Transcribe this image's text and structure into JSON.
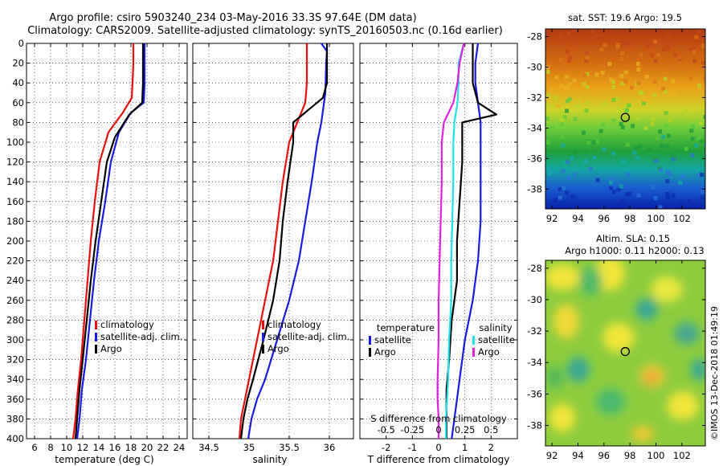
{
  "title_lines": [
    "Argo profile: csiro 5903240_234 03-May-2016 33.3S 97.64E (DM data)",
    "Climatology: CARS2009. Satellite-adjusted climatology: synTS_20160503.nc (0.16d earlier)"
  ],
  "credit": "©IMOS 13-Dec-2018 01:49:19",
  "colors": {
    "climatology": "#e8100c",
    "satellite": "#1a1ae0",
    "argo": "#000000",
    "sat_salinity": "#20e0e8",
    "argo_salinity": "#e020e0"
  },
  "chart_data": [
    {
      "type": "line",
      "id": "temperature",
      "xlabel": "temperature (deg C)",
      "ylabel": "",
      "xlim": [
        5,
        25
      ],
      "ylim": [
        0,
        400
      ],
      "y_inverted": true,
      "x_ticks": [
        6,
        8,
        10,
        12,
        14,
        16,
        18,
        20,
        22,
        24
      ],
      "y_ticks": [
        0,
        20,
        40,
        60,
        80,
        100,
        120,
        140,
        160,
        180,
        200,
        220,
        240,
        260,
        280,
        300,
        320,
        340,
        360,
        380,
        400
      ],
      "grid": true,
      "legend": {
        "position": "lower-right",
        "title": "",
        "entries": [
          "climatology",
          "satellite-adj. clim.",
          "Argo"
        ]
      },
      "series": [
        {
          "name": "climatology",
          "color_key": "climatology",
          "x": [
            18.3,
            18.3,
            18.2,
            18.1,
            17.0,
            15.2,
            14.1,
            13.5,
            13.0,
            12.6,
            12.2,
            11.8,
            11.4,
            11.1,
            10.8
          ],
          "depth": [
            0,
            20,
            40,
            55,
            70,
            90,
            120,
            160,
            200,
            240,
            280,
            320,
            350,
            380,
            400
          ]
        },
        {
          "name": "satellite-adj. clim.",
          "color_key": "satellite",
          "x": [
            19.7,
            19.7,
            19.7,
            19.6,
            18.0,
            16.5,
            15.5,
            14.8,
            14.0,
            13.4,
            12.9,
            12.4,
            11.9,
            11.6,
            11.3
          ],
          "depth": [
            0,
            20,
            40,
            60,
            70,
            90,
            120,
            160,
            200,
            240,
            280,
            320,
            350,
            380,
            400
          ]
        },
        {
          "name": "Argo",
          "color_key": "argo",
          "x": [
            19.5,
            19.5,
            19.5,
            19.4,
            17.8,
            16.0,
            15.0,
            14.3,
            13.6,
            13.0,
            12.5,
            12.0,
            11.6,
            11.3,
            11.1
          ],
          "depth": [
            0,
            20,
            40,
            60,
            72,
            95,
            120,
            160,
            200,
            240,
            280,
            320,
            350,
            380,
            400
          ]
        }
      ]
    },
    {
      "type": "line",
      "id": "salinity",
      "xlabel": "salinity",
      "ylabel": "",
      "xlim": [
        34.3,
        36.3
      ],
      "ylim": [
        0,
        400
      ],
      "y_inverted": true,
      "x_ticks": [
        34.5,
        35,
        35.5,
        36
      ],
      "x_tick_labels": [
        "34.5",
        "35",
        "35.5",
        "36"
      ],
      "grid": true,
      "legend": {
        "position": "lower-right",
        "title": "",
        "entries": [
          "climatology",
          "satellite-adj. clim.",
          "Argo"
        ]
      },
      "series": [
        {
          "name": "climatology",
          "color_key": "climatology",
          "x": [
            35.72,
            35.72,
            35.72,
            35.7,
            35.6,
            35.5,
            35.42,
            35.36,
            35.3,
            35.2,
            35.1,
            35.0,
            34.95,
            34.9,
            34.88
          ],
          "depth": [
            0,
            20,
            40,
            60,
            80,
            100,
            140,
            180,
            220,
            260,
            300,
            340,
            360,
            380,
            400
          ]
        },
        {
          "name": "satellite-adj. clim.",
          "color_key": "satellite",
          "x": [
            35.9,
            35.97,
            35.96,
            35.95,
            35.9,
            35.85,
            35.78,
            35.7,
            35.62,
            35.5,
            35.35,
            35.2,
            35.1,
            35.03,
            34.99
          ],
          "depth": [
            0,
            8,
            20,
            50,
            80,
            100,
            140,
            180,
            220,
            260,
            300,
            340,
            360,
            380,
            400
          ]
        },
        {
          "name": "Argo",
          "color_key": "argo",
          "x": [
            35.97,
            35.97,
            35.97,
            35.92,
            35.55,
            35.55,
            35.48,
            35.42,
            35.38,
            35.3,
            35.18,
            35.05,
            34.98,
            34.93,
            34.9
          ],
          "depth": [
            0,
            20,
            40,
            55,
            80,
            100,
            140,
            180,
            220,
            260,
            300,
            340,
            360,
            380,
            400
          ]
        }
      ]
    },
    {
      "type": "line",
      "id": "difference",
      "xlabel": "T difference from climatology",
      "top_axis_label": "S difference from climatology",
      "xlim": [
        -3,
        3
      ],
      "ylim": [
        0,
        400
      ],
      "y_inverted": true,
      "x_ticks": [
        -2,
        -1,
        0,
        1,
        2
      ],
      "x_tick_labels": [
        "-2",
        "-1",
        "0",
        "1",
        "2"
      ],
      "top_ticks": [
        -0.5,
        -0.25,
        0,
        0.25,
        0.5
      ],
      "top_tick_labels": [
        "-0.5",
        "-0.25",
        "0",
        "0.25",
        "0.5"
      ],
      "grid": true,
      "legend_left": {
        "title": "temperature",
        "entries": [
          "satellite",
          "Argo"
        ]
      },
      "legend_right": {
        "title": "salinity",
        "entries": [
          "satellite",
          "Argo"
        ]
      },
      "series": [
        {
          "name": "T satellite",
          "color_key": "satellite",
          "x": [
            1.5,
            1.4,
            1.4,
            1.5,
            1.6,
            1.6,
            1.6,
            1.6,
            1.5,
            1.3,
            1.0,
            0.8,
            0.7,
            0.6,
            0.5
          ],
          "depth": [
            0,
            20,
            40,
            60,
            80,
            100,
            140,
            180,
            220,
            260,
            300,
            340,
            360,
            380,
            400
          ]
        },
        {
          "name": "T Argo",
          "color_key": "argo",
          "x": [
            1.3,
            1.3,
            1.3,
            1.5,
            2.2,
            0.9,
            0.9,
            0.8,
            0.7,
            0.7,
            0.5,
            0.4,
            0.3,
            0.3,
            0.3
          ],
          "depth": [
            0,
            20,
            40,
            60,
            72,
            80,
            120,
            160,
            200,
            240,
            280,
            320,
            350,
            380,
            400
          ]
        },
        {
          "name": "S satellite",
          "color_key": "sat_salinity",
          "x": [
            0.24,
            0.19,
            0.19,
            0.18,
            0.15,
            0.14,
            0.14,
            0.13,
            0.12,
            0.12,
            0.1,
            0.09,
            0.08,
            0.07,
            0.07
          ],
          "depth": [
            0,
            20,
            40,
            60,
            80,
            100,
            140,
            180,
            220,
            260,
            300,
            340,
            360,
            380,
            400
          ]
        },
        {
          "name": "S Argo",
          "color_key": "argo_salinity",
          "x": [
            0.24,
            0.2,
            0.18,
            0.14,
            0.05,
            0.03,
            0.03,
            0.02,
            0.01,
            0.0,
            0.0,
            -0.01,
            -0.01,
            0.0,
            0.0
          ],
          "depth": [
            0,
            20,
            40,
            60,
            80,
            100,
            140,
            180,
            220,
            260,
            300,
            340,
            360,
            380,
            400
          ]
        }
      ]
    },
    {
      "type": "heatmap",
      "id": "sst-map",
      "title": "sat. SST: 19.6 Argo: 19.5",
      "xlim": [
        91.5,
        103.8
      ],
      "ylim": [
        -39.3,
        -27.5
      ],
      "x_ticks": [
        92,
        94,
        96,
        98,
        100,
        102
      ],
      "y_ticks": [
        -28,
        -30,
        -32,
        -34,
        -36,
        -38
      ],
      "marker": {
        "lon": 97.64,
        "lat": -33.3
      }
    },
    {
      "type": "heatmap",
      "id": "sla-map",
      "title_lines": [
        "Altim. SLA: 0.15",
        "Argo h1000: 0.11 h2000: 0.13"
      ],
      "xlim": [
        91.5,
        103.8
      ],
      "ylim": [
        -39.3,
        -27.5
      ],
      "x_ticks": [
        92,
        94,
        96,
        98,
        100,
        102
      ],
      "y_ticks": [
        -28,
        -30,
        -32,
        -34,
        -36,
        -38
      ],
      "marker": {
        "lon": 97.64,
        "lat": -33.3
      }
    }
  ]
}
